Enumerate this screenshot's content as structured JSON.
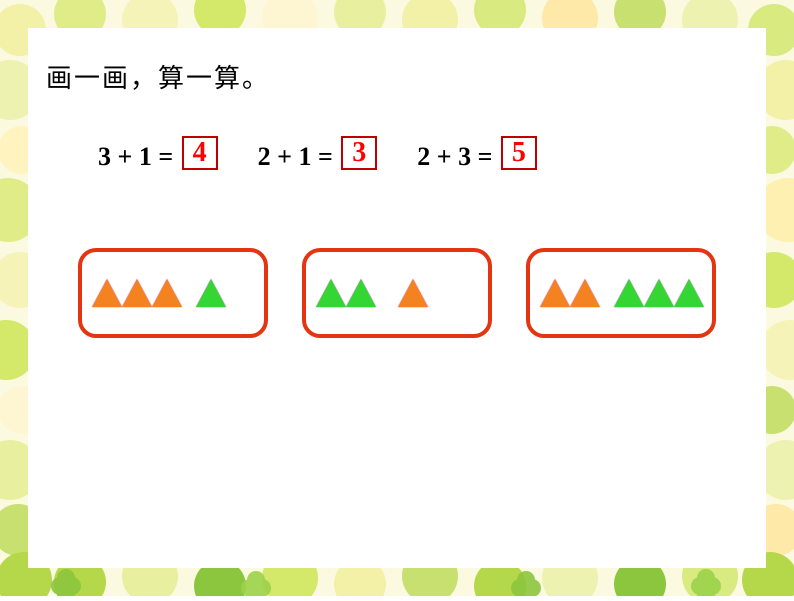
{
  "title": "画一画，算一算。",
  "equations": [
    {
      "expr": "3 + 1 = ",
      "answer": "4"
    },
    {
      "expr": "2 + 1 = ",
      "answer": "3"
    },
    {
      "expr": "2 + 3 = ",
      "answer": "5"
    }
  ],
  "cards": [
    {
      "groups": [
        {
          "color": "orange",
          "count": 3
        },
        {
          "color": "green",
          "count": 1
        }
      ],
      "gap": "med"
    },
    {
      "groups": [
        {
          "color": "green",
          "count": 2
        },
        {
          "color": "orange",
          "count": 1
        }
      ],
      "gap": "large"
    },
    {
      "groups": [
        {
          "color": "orange",
          "count": 2
        },
        {
          "color": "green",
          "count": 3
        }
      ],
      "gap": "med"
    }
  ],
  "style": {
    "page_bg": "#ffffff",
    "title_color": "#000000",
    "eq_color": "#000000",
    "answer_border": "#c00000",
    "answer_color": "#ff0000",
    "card_border": "#e53510",
    "tri_orange": "#f58220",
    "tri_green": "#33d633",
    "border_palette": [
      "#f9f7c8",
      "#e8f0a0",
      "#d4e86a",
      "#b5d84a",
      "#8cc63f",
      "#ffe9a8",
      "#ffd060",
      "#fff5d0"
    ]
  }
}
